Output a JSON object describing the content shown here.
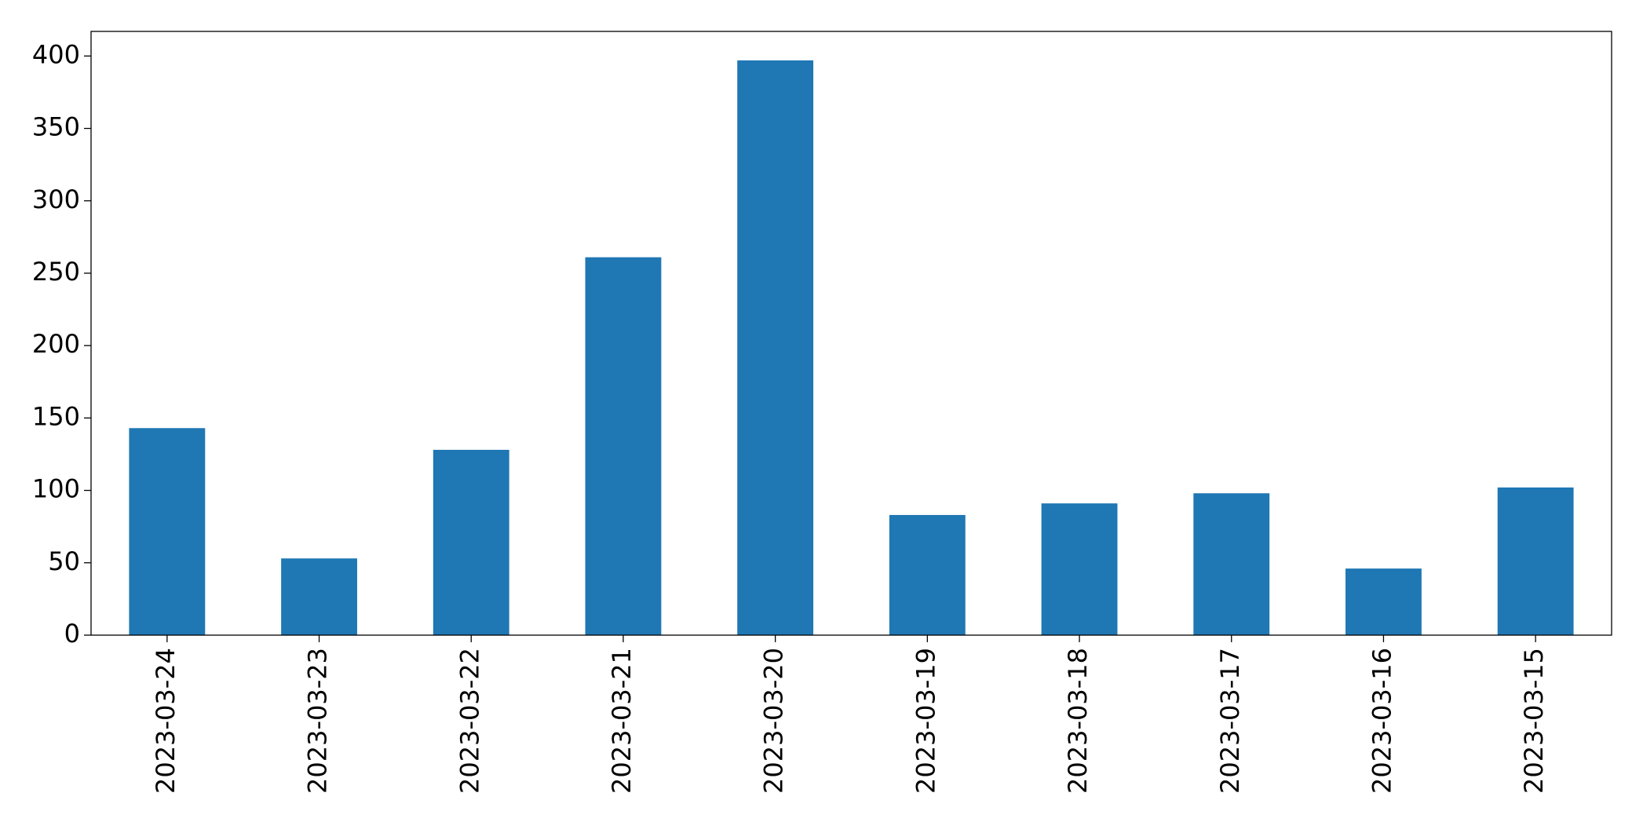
{
  "chart_data": {
    "type": "bar",
    "categories": [
      "2023-03-24",
      "2023-03-23",
      "2023-03-22",
      "2023-03-21",
      "2023-03-20",
      "2023-03-19",
      "2023-03-18",
      "2023-03-17",
      "2023-03-16",
      "2023-03-15"
    ],
    "values": [
      143,
      53,
      128,
      261,
      397,
      83,
      91,
      98,
      46,
      102
    ],
    "color": "#1f77b4",
    "ylim": [
      0,
      417
    ],
    "yticks": [
      0,
      50,
      100,
      150,
      200,
      250,
      300,
      350,
      400
    ],
    "grid": false
  }
}
